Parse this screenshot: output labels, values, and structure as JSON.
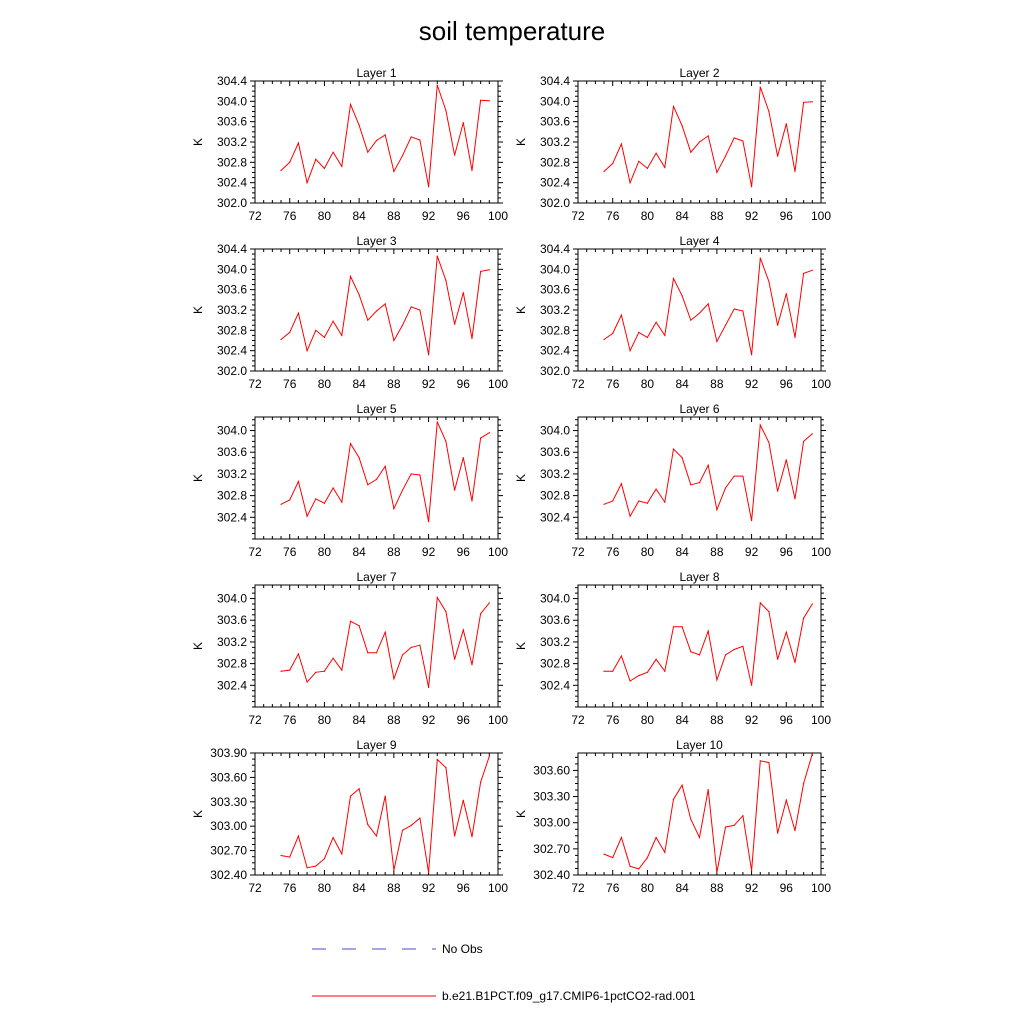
{
  "title": "soil temperature",
  "legend": {
    "placement": "bottom",
    "entries": [
      {
        "label": "No Obs",
        "color": "#4a4ad0",
        "style": "dashed"
      },
      {
        "label": "b.e21.B1PCT.f09_g17.CMIP6-1pctCO2-rad.001",
        "color": "#ff0000",
        "style": "solid"
      }
    ]
  },
  "chart_data": [
    {
      "type": "line",
      "title": "Layer 1",
      "ylabel": "K",
      "xlim": [
        72,
        100
      ],
      "xticks": [
        "72",
        "76",
        "80",
        "84",
        "88",
        "92",
        "96",
        "100"
      ],
      "ylim": [
        302.0,
        304.4
      ],
      "yticks": [
        "302.0",
        "302.4",
        "302.8",
        "303.2",
        "303.6",
        "304.0",
        "304.4"
      ],
      "series": [
        {
          "color": "#ff0000",
          "x": [
            75,
            76,
            77,
            78,
            79,
            80,
            81,
            82,
            83,
            84,
            85,
            86,
            87,
            88,
            89,
            90,
            91,
            92,
            93,
            94,
            95,
            96,
            97,
            98,
            99
          ],
          "y": [
            302.64,
            302.8,
            303.18,
            302.4,
            302.86,
            302.68,
            303.0,
            302.72,
            303.94,
            303.53,
            303.0,
            303.23,
            303.34,
            302.62,
            302.93,
            303.3,
            303.24,
            302.32,
            304.32,
            303.82,
            302.94,
            303.58,
            302.64,
            304.02,
            304.01
          ]
        }
      ]
    },
    {
      "type": "line",
      "title": "Layer 2",
      "ylabel": "K",
      "xlim": [
        72,
        100
      ],
      "xticks": [
        "72",
        "76",
        "80",
        "84",
        "88",
        "92",
        "96",
        "100"
      ],
      "ylim": [
        302.0,
        304.4
      ],
      "yticks": [
        "302.0",
        "302.4",
        "302.8",
        "303.2",
        "303.6",
        "304.0",
        "304.4"
      ],
      "series": [
        {
          "color": "#ff0000",
          "x": [
            75,
            76,
            77,
            78,
            79,
            80,
            81,
            82,
            83,
            84,
            85,
            86,
            87,
            88,
            89,
            90,
            91,
            92,
            93,
            94,
            95,
            96,
            97,
            98,
            99
          ],
          "y": [
            302.62,
            302.78,
            303.16,
            302.4,
            302.82,
            302.68,
            302.98,
            302.7,
            303.9,
            303.52,
            303.0,
            303.2,
            303.32,
            302.6,
            302.92,
            303.28,
            303.22,
            302.32,
            304.28,
            303.8,
            302.92,
            303.56,
            302.62,
            303.98,
            303.99
          ]
        }
      ]
    },
    {
      "type": "line",
      "title": "Layer 3",
      "ylabel": "K",
      "xlim": [
        72,
        100
      ],
      "xticks": [
        "72",
        "76",
        "80",
        "84",
        "88",
        "92",
        "96",
        "100"
      ],
      "ylim": [
        302.0,
        304.4
      ],
      "yticks": [
        "302.0",
        "302.4",
        "302.8",
        "303.2",
        "303.6",
        "304.0",
        "304.4"
      ],
      "series": [
        {
          "color": "#ff0000",
          "x": [
            75,
            76,
            77,
            78,
            79,
            80,
            81,
            82,
            83,
            84,
            85,
            86,
            87,
            88,
            89,
            90,
            91,
            92,
            93,
            94,
            95,
            96,
            97,
            98,
            99
          ],
          "y": [
            302.62,
            302.76,
            303.14,
            302.4,
            302.8,
            302.66,
            302.98,
            302.7,
            303.86,
            303.5,
            303.0,
            303.18,
            303.32,
            302.6,
            302.9,
            303.26,
            303.2,
            302.32,
            304.26,
            303.78,
            302.92,
            303.54,
            302.64,
            303.96,
            303.99
          ]
        }
      ]
    },
    {
      "type": "line",
      "title": "Layer 4",
      "ylabel": "K",
      "xlim": [
        72,
        100
      ],
      "xticks": [
        "72",
        "76",
        "80",
        "84",
        "88",
        "92",
        "96",
        "100"
      ],
      "ylim": [
        302.0,
        304.4
      ],
      "yticks": [
        "302.0",
        "302.4",
        "302.8",
        "303.2",
        "303.6",
        "304.0",
        "304.4"
      ],
      "series": [
        {
          "color": "#ff0000",
          "x": [
            75,
            76,
            77,
            78,
            79,
            80,
            81,
            82,
            83,
            84,
            85,
            86,
            87,
            88,
            89,
            90,
            91,
            92,
            93,
            94,
            95,
            96,
            97,
            98,
            99
          ],
          "y": [
            302.62,
            302.74,
            303.1,
            302.4,
            302.76,
            302.66,
            302.96,
            302.7,
            303.82,
            303.48,
            303.0,
            303.14,
            303.32,
            302.58,
            302.9,
            303.22,
            303.18,
            302.32,
            304.22,
            303.76,
            302.9,
            303.52,
            302.66,
            303.92,
            303.98
          ]
        }
      ]
    },
    {
      "type": "line",
      "title": "Layer 5",
      "ylabel": "K",
      "xlim": [
        72,
        100
      ],
      "xticks": [
        "72",
        "76",
        "80",
        "84",
        "88",
        "92",
        "96",
        "100"
      ],
      "ylim": [
        302.0,
        304.25
      ],
      "yticks": [
        "302.4",
        "302.8",
        "303.2",
        "303.6",
        "304.0"
      ],
      "series": [
        {
          "color": "#ff0000",
          "x": [
            75,
            76,
            77,
            78,
            79,
            80,
            81,
            82,
            83,
            84,
            85,
            86,
            87,
            88,
            89,
            90,
            91,
            92,
            93,
            94,
            95,
            96,
            97,
            98,
            99
          ],
          "y": [
            302.64,
            302.72,
            303.06,
            302.42,
            302.74,
            302.66,
            302.94,
            302.68,
            303.76,
            303.5,
            303.0,
            303.1,
            303.34,
            302.56,
            302.9,
            303.2,
            303.18,
            302.32,
            304.16,
            303.8,
            302.9,
            303.5,
            302.7,
            303.86,
            303.96
          ]
        }
      ]
    },
    {
      "type": "line",
      "title": "Layer 6",
      "ylabel": "K",
      "xlim": [
        72,
        100
      ],
      "xticks": [
        "72",
        "76",
        "80",
        "84",
        "88",
        "92",
        "96",
        "100"
      ],
      "ylim": [
        302.0,
        304.25
      ],
      "yticks": [
        "302.4",
        "302.8",
        "303.2",
        "303.6",
        "304.0"
      ],
      "series": [
        {
          "color": "#ff0000",
          "x": [
            75,
            76,
            77,
            78,
            79,
            80,
            81,
            82,
            83,
            84,
            85,
            86,
            87,
            88,
            89,
            90,
            91,
            92,
            93,
            94,
            95,
            96,
            97,
            98,
            99
          ],
          "y": [
            302.64,
            302.7,
            303.02,
            302.42,
            302.7,
            302.66,
            302.92,
            302.68,
            303.66,
            303.5,
            303.0,
            303.04,
            303.36,
            302.54,
            302.94,
            303.16,
            303.16,
            302.34,
            304.1,
            303.78,
            302.88,
            303.46,
            302.74,
            303.8,
            303.94
          ]
        }
      ]
    },
    {
      "type": "line",
      "title": "Layer 7",
      "ylabel": "K",
      "xlim": [
        72,
        100
      ],
      "xticks": [
        "72",
        "76",
        "80",
        "84",
        "88",
        "92",
        "96",
        "100"
      ],
      "ylim": [
        302.0,
        304.25
      ],
      "yticks": [
        "302.4",
        "302.8",
        "303.2",
        "303.6",
        "304.0"
      ],
      "series": [
        {
          "color": "#ff0000",
          "x": [
            75,
            76,
            77,
            78,
            79,
            80,
            81,
            82,
            83,
            84,
            85,
            86,
            87,
            88,
            89,
            90,
            91,
            92,
            93,
            94,
            95,
            96,
            97,
            98,
            99
          ],
          "y": [
            302.66,
            302.68,
            302.98,
            302.46,
            302.64,
            302.66,
            302.9,
            302.68,
            303.58,
            303.5,
            303.0,
            303.0,
            303.38,
            302.52,
            302.96,
            303.1,
            303.14,
            302.36,
            304.02,
            303.76,
            302.88,
            303.42,
            302.78,
            303.72,
            303.92
          ]
        }
      ]
    },
    {
      "type": "line",
      "title": "Layer 8",
      "ylabel": "K",
      "xlim": [
        72,
        100
      ],
      "xticks": [
        "72",
        "76",
        "80",
        "84",
        "88",
        "92",
        "96",
        "100"
      ],
      "ylim": [
        302.0,
        304.25
      ],
      "yticks": [
        "302.4",
        "302.8",
        "303.2",
        "303.6",
        "304.0"
      ],
      "series": [
        {
          "color": "#ff0000",
          "x": [
            75,
            76,
            77,
            78,
            79,
            80,
            81,
            82,
            83,
            84,
            85,
            86,
            87,
            88,
            89,
            90,
            91,
            92,
            93,
            94,
            95,
            96,
            97,
            98,
            99
          ],
          "y": [
            302.66,
            302.66,
            302.94,
            302.48,
            302.58,
            302.64,
            302.88,
            302.66,
            303.48,
            303.48,
            303.02,
            302.96,
            303.4,
            302.5,
            302.96,
            303.06,
            303.12,
            302.4,
            303.92,
            303.76,
            302.88,
            303.38,
            302.82,
            303.64,
            303.9
          ]
        }
      ]
    },
    {
      "type": "line",
      "title": "Layer 9",
      "ylabel": "K",
      "xlim": [
        72,
        100
      ],
      "xticks": [
        "72",
        "76",
        "80",
        "84",
        "88",
        "92",
        "96",
        "100"
      ],
      "ylim": [
        302.4,
        303.9
      ],
      "yticks": [
        "302.40",
        "302.70",
        "303.00",
        "303.30",
        "303.60",
        "303.90"
      ],
      "series": [
        {
          "color": "#ff0000",
          "x": [
            75,
            76,
            77,
            78,
            79,
            80,
            81,
            82,
            83,
            84,
            85,
            86,
            87,
            88,
            89,
            90,
            91,
            92,
            93,
            94,
            95,
            96,
            97,
            98,
            99
          ],
          "y": [
            302.64,
            302.62,
            302.88,
            302.49,
            302.51,
            302.6,
            302.86,
            302.66,
            303.37,
            303.46,
            303.02,
            302.88,
            303.37,
            302.46,
            302.95,
            303.01,
            303.1,
            302.43,
            303.82,
            303.72,
            302.88,
            303.32,
            302.87,
            303.54,
            303.86
          ]
        }
      ]
    },
    {
      "type": "line",
      "title": "Layer 10",
      "ylabel": "K",
      "xlim": [
        72,
        100
      ],
      "xticks": [
        "72",
        "76",
        "80",
        "84",
        "88",
        "92",
        "96",
        "100"
      ],
      "ylim": [
        302.4,
        303.8
      ],
      "yticks": [
        "302.40",
        "302.70",
        "303.00",
        "303.30",
        "303.60"
      ],
      "series": [
        {
          "color": "#ff0000",
          "x": [
            75,
            76,
            77,
            78,
            79,
            80,
            81,
            82,
            83,
            84,
            85,
            86,
            87,
            88,
            89,
            90,
            91,
            92,
            93,
            94,
            95,
            96,
            97,
            98,
            99
          ],
          "y": [
            302.64,
            302.6,
            302.83,
            302.5,
            302.47,
            302.6,
            302.83,
            302.66,
            303.27,
            303.43,
            303.04,
            302.83,
            303.38,
            302.43,
            302.95,
            302.97,
            303.08,
            302.45,
            303.71,
            303.69,
            302.88,
            303.26,
            302.91,
            303.45,
            303.79
          ]
        }
      ]
    }
  ]
}
